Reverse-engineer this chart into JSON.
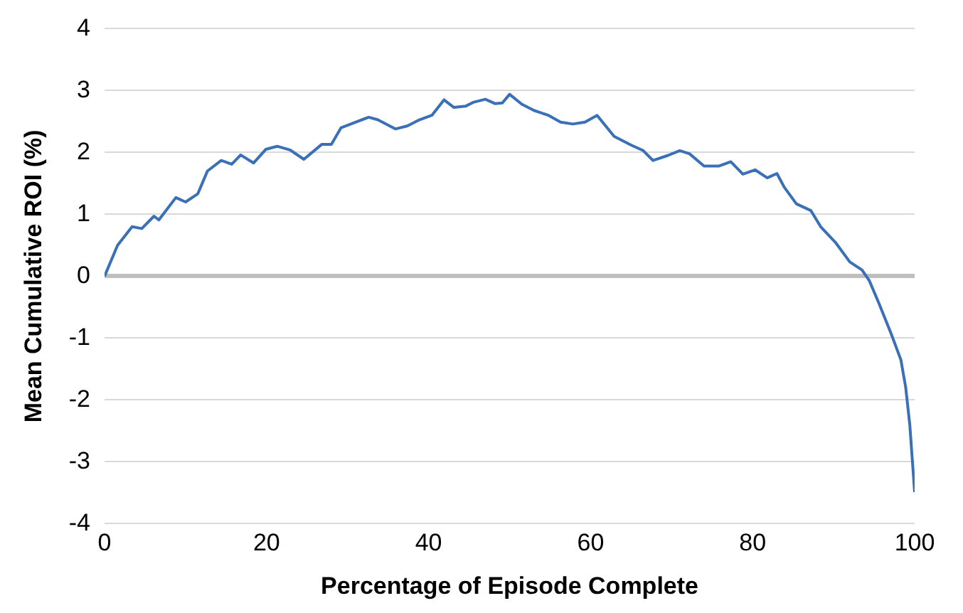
{
  "chart_data": {
    "type": "line",
    "xlabel": "Percentage of Episode Complete",
    "ylabel": "Mean Cumulative ROI (%)",
    "xlim": [
      0,
      100
    ],
    "xticks": [
      0,
      20,
      40,
      60,
      80,
      100
    ],
    "ylim": [
      -4,
      4
    ],
    "yticks": [
      -4,
      -3,
      -2,
      -1,
      0,
      1,
      2,
      3,
      4
    ],
    "grid": "y",
    "legend": false,
    "marker": "none",
    "line_style": "solid",
    "series": [
      {
        "color": "#3a70b8",
        "x": [
          0,
          1.6,
          3.4,
          4.6,
          6.1,
          6.7,
          8.8,
          10.0,
          11.5,
          12.7,
          14.4,
          15.7,
          16.8,
          18.4,
          19.9,
          21.3,
          22.9,
          24.6,
          26.8,
          28.0,
          29.2,
          30.8,
          32.6,
          33.7,
          35.9,
          37.4,
          38.9,
          40.4,
          41.9,
          43.1,
          44.6,
          45.5,
          47.0,
          48.2,
          49.1,
          50.0,
          51.5,
          53.0,
          54.8,
          56.3,
          57.8,
          59.3,
          60.8,
          62.9,
          65.0,
          66.5,
          67.7,
          69.5,
          71.0,
          72.2,
          74.0,
          75.8,
          77.3,
          78.8,
          80.3,
          81.8,
          83.0,
          83.9,
          85.4,
          87.2,
          88.4,
          90.2,
          92.0,
          93.5,
          94.4,
          95.6,
          97.1,
          98.3,
          98.9,
          99.4,
          100
        ],
        "values": [
          0,
          0.5,
          0.8,
          0.77,
          0.97,
          0.91,
          1.27,
          1.2,
          1.33,
          1.7,
          1.87,
          1.81,
          1.96,
          1.83,
          2.05,
          2.1,
          2.04,
          1.89,
          2.13,
          2.13,
          2.4,
          2.48,
          2.57,
          2.53,
          2.38,
          2.43,
          2.53,
          2.6,
          2.85,
          2.73,
          2.75,
          2.81,
          2.86,
          2.79,
          2.8,
          2.94,
          2.78,
          2.68,
          2.6,
          2.49,
          2.46,
          2.49,
          2.6,
          2.26,
          2.12,
          2.03,
          1.87,
          1.95,
          2.03,
          1.98,
          1.78,
          1.78,
          1.85,
          1.65,
          1.72,
          1.59,
          1.66,
          1.44,
          1.17,
          1.06,
          0.8,
          0.55,
          0.23,
          0.1,
          -0.07,
          -0.44,
          -0.93,
          -1.35,
          -1.8,
          -2.4,
          -3.49
        ]
      }
    ]
  }
}
